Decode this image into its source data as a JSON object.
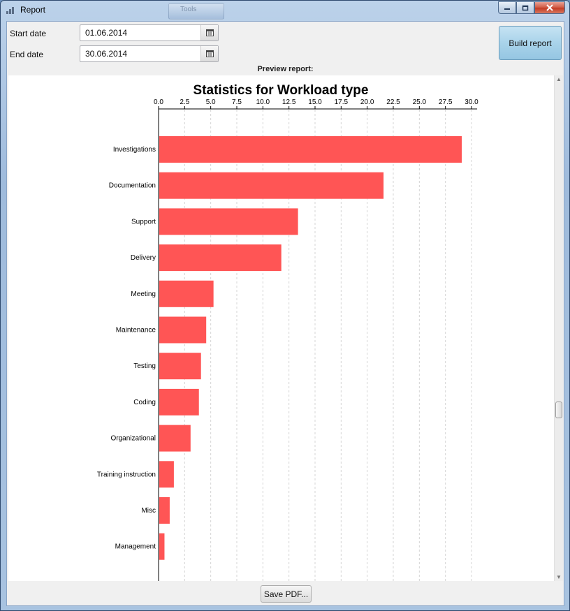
{
  "window": {
    "title": "Report",
    "ghost_tab": "Tools"
  },
  "form": {
    "start_label": "Start date",
    "start_value": "01.06.2014",
    "end_label": "End date",
    "end_value": "30.06.2014",
    "build_label": "Build report",
    "preview_label": "Preview report:",
    "save_label": "Save PDF..."
  },
  "chart_data": {
    "type": "bar",
    "orientation": "horizontal",
    "title": "Statistics for Workload type",
    "xlabel": "",
    "ylabel": "",
    "xlim": [
      0,
      30
    ],
    "x_ticks": [
      "0.0",
      "2.5",
      "5.0",
      "7.5",
      "10.0",
      "12.5",
      "15.0",
      "17.5",
      "20.0",
      "22.5",
      "25.0",
      "27.5",
      "30.0"
    ],
    "grid": true,
    "legend": "none",
    "bar_color": "#ff5555",
    "categories": [
      "Investigations",
      "Documentation",
      "Support",
      "Delivery",
      "Meeting",
      "Maintenance",
      "Testing",
      "Coding",
      "Organizational",
      "Training instruction",
      "Misc",
      "Management"
    ],
    "values": [
      29.0,
      21.5,
      13.3,
      11.7,
      5.2,
      4.5,
      4.0,
      3.8,
      3.0,
      1.4,
      1.0,
      0.5
    ]
  }
}
